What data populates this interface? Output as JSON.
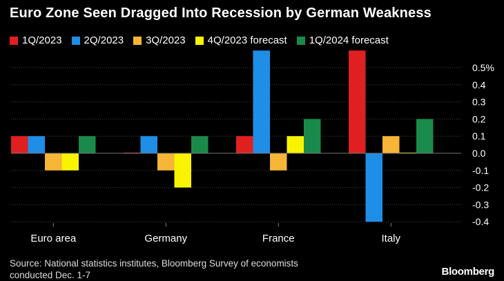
{
  "title": "Euro Zone Seen Dragged Into Recession by German Weakness",
  "logo": "Bloomberg",
  "source_line1": "Source: National statistics institutes, Bloomberg Survey of economists",
  "source_line2": "conducted Dec. 1-7",
  "chart_data": {
    "type": "bar",
    "categories": [
      "Euro area",
      "Germany",
      "France",
      "Italy"
    ],
    "series": [
      {
        "name": "1Q/2023",
        "color": "#e02020",
        "values": [
          0.1,
          0.0,
          0.1,
          0.6
        ]
      },
      {
        "name": "2Q/2023",
        "color": "#1f8ee6",
        "values": [
          0.1,
          0.1,
          0.6,
          -0.4
        ]
      },
      {
        "name": "3Q/2023",
        "color": "#f7b538",
        "values": [
          -0.1,
          -0.1,
          -0.1,
          0.1
        ]
      },
      {
        "name": "4Q/2023 forecast",
        "color": "#f8f400",
        "values": [
          -0.1,
          -0.2,
          0.1,
          0.0
        ]
      },
      {
        "name": "1Q/2024 forecast",
        "color": "#1a8a4a",
        "values": [
          0.1,
          0.1,
          0.2,
          0.2
        ]
      }
    ],
    "yticks": [
      {
        "v": 0.5,
        "label": "0.5%"
      },
      {
        "v": 0.4,
        "label": "0.4"
      },
      {
        "v": 0.3,
        "label": "0.3"
      },
      {
        "v": 0.2,
        "label": "0.2"
      },
      {
        "v": 0.1,
        "label": "0.1"
      },
      {
        "v": 0.0,
        "label": "0.0"
      },
      {
        "v": -0.1,
        "label": "-0.1"
      },
      {
        "v": -0.2,
        "label": "-0.2"
      },
      {
        "v": -0.3,
        "label": "-0.3"
      },
      {
        "v": -0.4,
        "label": "-0.4"
      }
    ],
    "ylim": [
      -0.4,
      0.6
    ],
    "grid": true,
    "axis_side": "right"
  }
}
